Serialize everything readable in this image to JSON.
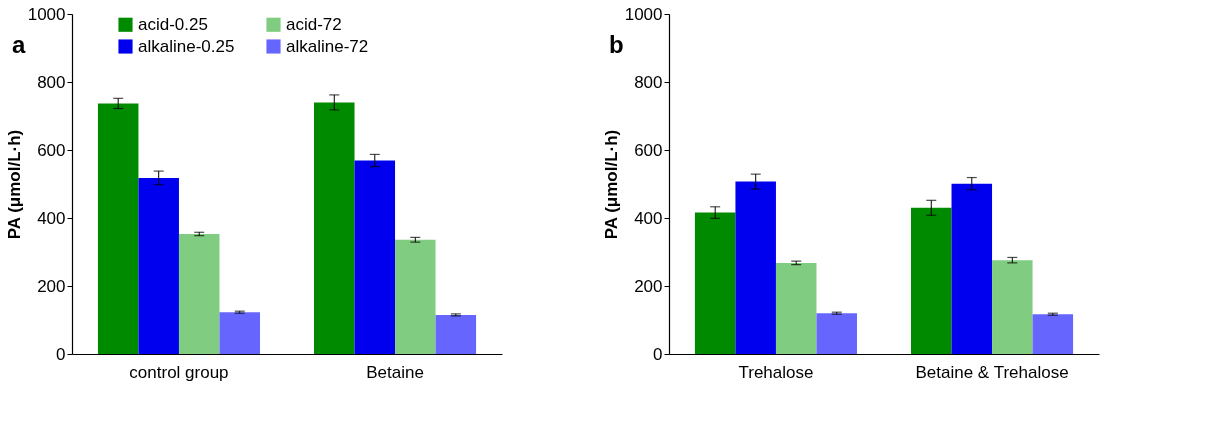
{
  "chart_data": [
    {
      "type": "bar",
      "annotations": [
        "a"
      ],
      "ylabel": "PA (μmol/L·h)",
      "categories": [
        "control group",
        "Betaine"
      ],
      "ylim": [
        0,
        1000
      ],
      "yticks": [
        0,
        200,
        400,
        600,
        800,
        1000
      ],
      "grid": false,
      "legend": "top",
      "series": [
        {
          "name": "acid-0.25",
          "color": "#008a00",
          "values": [
            737,
            740
          ],
          "errors": [
            15,
            22
          ]
        },
        {
          "name": "alkaline-0.25",
          "color": "#0000ee",
          "values": [
            518,
            569
          ],
          "errors": [
            20,
            18
          ]
        },
        {
          "name": "acid-72",
          "color": "#80cc80",
          "values": [
            353,
            336
          ],
          "errors": [
            5,
            7
          ]
        },
        {
          "name": "alkaline-72",
          "color": "#6666ff",
          "values": [
            123,
            115
          ],
          "errors": [
            3,
            3
          ]
        }
      ]
    },
    {
      "type": "bar",
      "annotations": [
        "b"
      ],
      "ylabel": "PA (μmol/L·h)",
      "categories": [
        "Trehalose",
        "Betaine & Trehalose"
      ],
      "ylim": [
        0,
        1000
      ],
      "yticks": [
        0,
        200,
        400,
        600,
        800,
        1000
      ],
      "grid": false,
      "legend": "top",
      "series": [
        {
          "name": "acid-0.25",
          "color": "#008a00",
          "values": [
            416,
            430
          ],
          "errors": [
            17,
            22
          ]
        },
        {
          "name": "alkaline-0.25",
          "color": "#0000ee",
          "values": [
            507,
            501
          ],
          "errors": [
            22,
            18
          ]
        },
        {
          "name": "acid-72",
          "color": "#80cc80",
          "values": [
            268,
            276
          ],
          "errors": [
            5,
            8
          ]
        },
        {
          "name": "alkaline-72",
          "color": "#6666ff",
          "values": [
            120,
            117
          ],
          "errors": [
            3,
            3
          ]
        }
      ]
    }
  ]
}
